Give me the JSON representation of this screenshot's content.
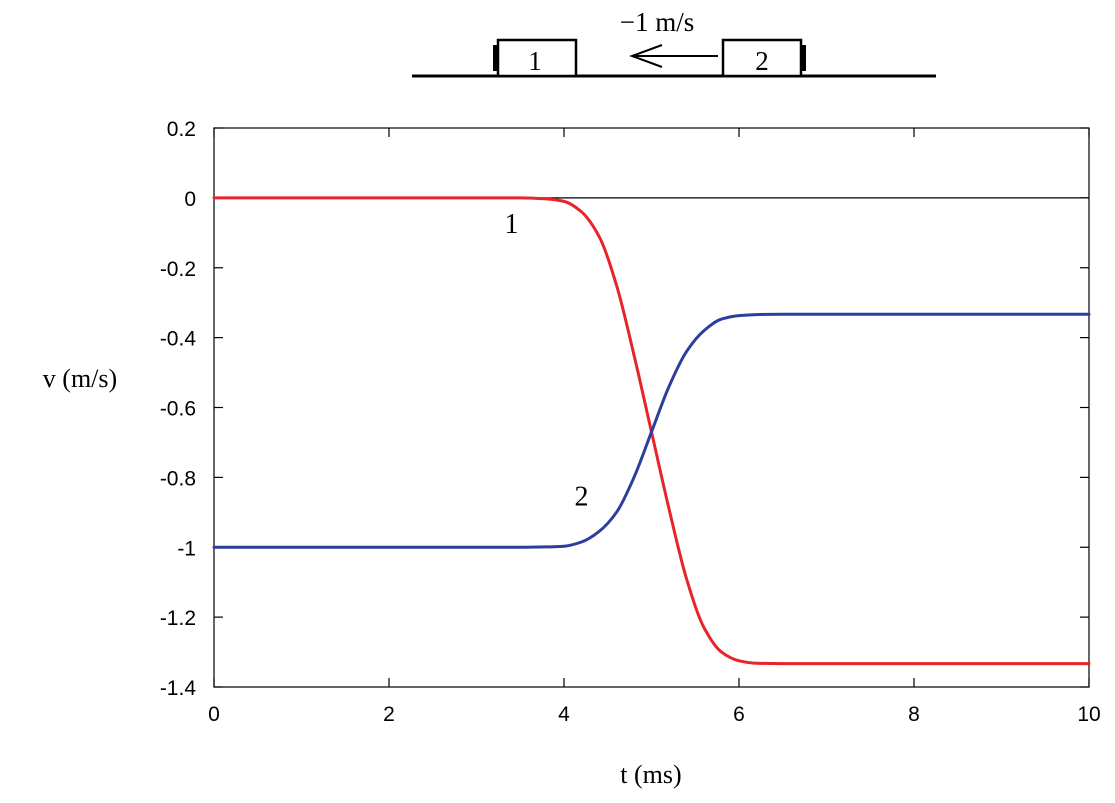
{
  "chart_data": {
    "type": "line",
    "xlabel": "t (ms)",
    "ylabel": "v (m/s)",
    "xlim": [
      0,
      10
    ],
    "ylim": [
      -1.4,
      0.2
    ],
    "x_ticks": [
      0,
      2,
      4,
      6,
      8,
      10
    ],
    "y_ticks": [
      0.2,
      0,
      -0.2,
      -0.4,
      -0.6,
      -0.8,
      -1,
      -1.2,
      -1.4
    ],
    "x_tick_labels": [
      "0",
      "2",
      "4",
      "6",
      "8",
      "10"
    ],
    "y_tick_labels": [
      "0.2",
      "0",
      "-0.2",
      "-0.4",
      "-0.6",
      "-0.8",
      "-1",
      "-1.2",
      "-1.4"
    ],
    "grid": false,
    "reference_line": {
      "y": 0,
      "color": "#000000"
    },
    "series": [
      {
        "label": "1",
        "color": "#e8242b",
        "x": [
          0,
          3.5,
          3.8,
          4.0,
          4.2,
          4.4,
          4.6,
          4.8,
          5.0,
          5.2,
          5.4,
          5.6,
          5.8,
          6.0,
          6.2,
          6.5,
          10
        ],
        "y": [
          0,
          0,
          -0.003,
          -0.01,
          -0.04,
          -0.11,
          -0.25,
          -0.45,
          -0.67,
          -0.89,
          -1.09,
          -1.23,
          -1.3,
          -1.325,
          -1.332,
          -1.333,
          -1.333
        ]
      },
      {
        "label": "2",
        "color": "#2e3e9c",
        "x": [
          0,
          3.5,
          3.8,
          4.0,
          4.2,
          4.4,
          4.6,
          4.8,
          5.0,
          5.2,
          5.4,
          5.6,
          5.8,
          6.0,
          6.2,
          6.5,
          10
        ],
        "y": [
          -1,
          -1,
          -0.999,
          -0.997,
          -0.985,
          -0.955,
          -0.9,
          -0.8,
          -0.67,
          -0.54,
          -0.44,
          -0.38,
          -0.347,
          -0.337,
          -0.334,
          -0.333,
          -0.333
        ]
      }
    ],
    "annotations": [
      {
        "text": "1",
        "x": 3.4,
        "y": -0.1
      },
      {
        "text": "2",
        "x": 4.2,
        "y": -0.88
      }
    ]
  },
  "diagram": {
    "velocity_text": "−1 m/s",
    "cart1_label": "1",
    "cart2_label": "2"
  }
}
